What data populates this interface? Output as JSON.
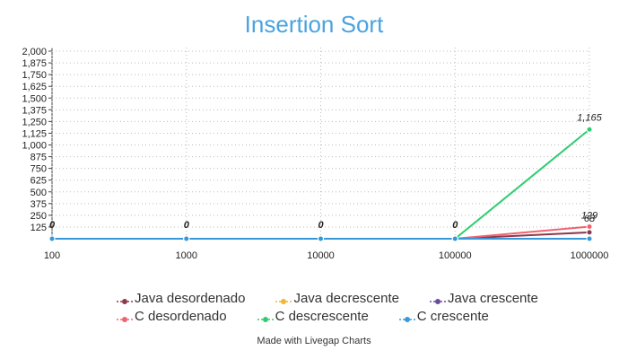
{
  "chart_data": {
    "type": "line",
    "title": "Insertion Sort",
    "x": [
      "100",
      "1000",
      "10000",
      "100000",
      "1000000"
    ],
    "ylim": [
      0,
      2000
    ],
    "yticks": [
      "2,000",
      "1,875",
      "1,750",
      "1,625",
      "1,500",
      "1,375",
      "1,250",
      "1,125",
      "1,000",
      "875",
      "750",
      "625",
      "500",
      "375",
      "250",
      "125"
    ],
    "grid": true,
    "legend_position": "bottom",
    "series": [
      {
        "name": "Java desordenado",
        "color": "#8b3a4a",
        "values": [
          0,
          0,
          0,
          0,
          68
        ]
      },
      {
        "name": "Java decrescente",
        "color": "#f2b630",
        "values": [
          0,
          0,
          0,
          0,
          0
        ]
      },
      {
        "name": "Java crescente",
        "color": "#6a4c9c",
        "values": [
          0,
          0,
          0,
          0,
          0
        ]
      },
      {
        "name": "C desordenado",
        "color": "#f0626e",
        "values": [
          0,
          0,
          0,
          0,
          129
        ]
      },
      {
        "name": "C descrescente",
        "color": "#2ecc71",
        "values": [
          0,
          0,
          0,
          0,
          1165
        ]
      },
      {
        "name": "C crescente",
        "color": "#3498db",
        "values": [
          0,
          0,
          0,
          0,
          0
        ]
      }
    ],
    "point_labels": [
      {
        "x_index": 0,
        "text": "0"
      },
      {
        "x_index": 1,
        "text": "0"
      },
      {
        "x_index": 2,
        "text": "0"
      },
      {
        "x_index": 3,
        "text": "0"
      },
      {
        "x_index": 4,
        "text": "1,165"
      },
      {
        "x_index": 4,
        "text": "129"
      },
      {
        "x_index": 4,
        "text": "68"
      }
    ]
  },
  "footer": {
    "credit": "Made with Livegap Charts"
  }
}
